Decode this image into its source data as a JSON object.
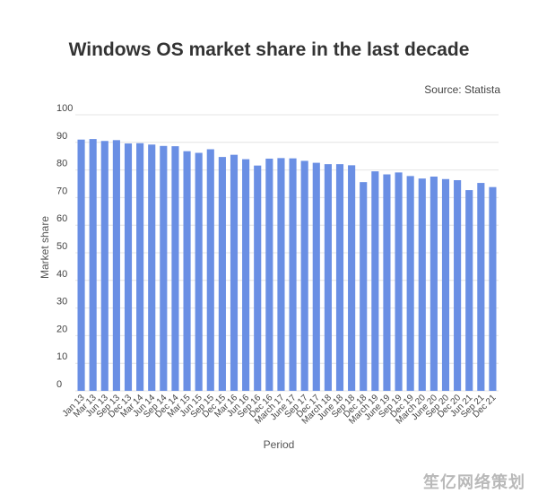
{
  "chart_data": {
    "type": "bar",
    "title": "Windows OS market share in the last decade",
    "source": "Source: Statista",
    "xlabel": "Period",
    "ylabel": "Market share",
    "ylim": [
      0,
      100
    ],
    "yticks": [
      0,
      10,
      20,
      30,
      40,
      50,
      60,
      70,
      80,
      90,
      100
    ],
    "grid": true,
    "bar_color": "#6a8fe4",
    "categories": [
      "Jan 13",
      "Mar 13",
      "Jun 13",
      "Sep 13",
      "Dec 13",
      "Mar 14",
      "Jun 14",
      "Sep 14",
      "Dec 14",
      "Mar 15",
      "Jun 15",
      "Sep 15",
      "Dec 15",
      "Mar 16",
      "Jun 16",
      "Sep 16",
      "Dec 16",
      "March 17",
      "June 17",
      "Sep 17",
      "Dec 17",
      "March 18",
      "June 18",
      "Sep 18",
      "Dec 18",
      "March 19",
      "June 19",
      "Sep 19",
      "Dec 19",
      "March 20",
      "June 20",
      "Sep 20",
      "Dec 20",
      "Jun 21",
      "Sep 21",
      "Dec 21"
    ],
    "values": [
      91.0,
      91.2,
      90.5,
      90.8,
      89.6,
      89.7,
      89.2,
      88.7,
      88.6,
      86.8,
      86.2,
      87.5,
      84.7,
      85.5,
      83.9,
      81.6,
      84.1,
      84.3,
      84.2,
      83.3,
      82.6,
      82.1,
      82.1,
      81.7,
      75.6,
      79.5,
      78.4,
      79.1,
      77.8,
      76.9,
      77.6,
      76.7,
      76.3,
      72.7,
      75.3,
      73.8
    ]
  },
  "watermark": "笙亿网络策划"
}
